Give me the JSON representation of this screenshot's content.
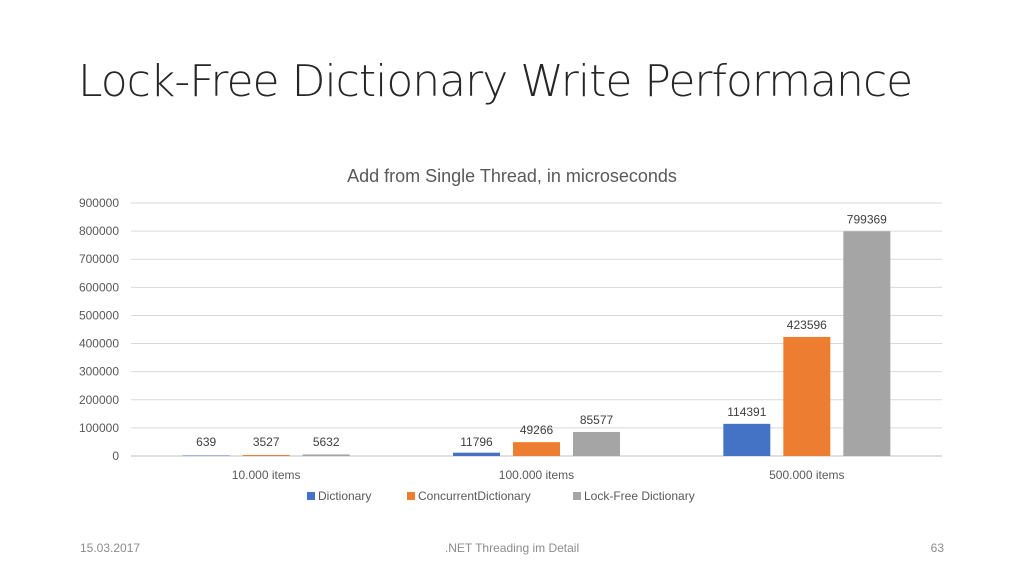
{
  "slide": {
    "title": "Lock-Free Dictionary Write Performance",
    "footer_date": "15.03.2017",
    "footer_center": ".NET Threading im Detail",
    "page_number": "63"
  },
  "chart_data": {
    "type": "bar",
    "title": "Add from Single Thread, in microseconds",
    "categories": [
      "10.000 items",
      "100.000 items",
      "500.000 items"
    ],
    "series": [
      {
        "name": "Dictionary",
        "color": "#4472c4",
        "values": [
          639,
          11796,
          114391
        ]
      },
      {
        "name": "ConcurrentDictionary",
        "color": "#ed7d31",
        "values": [
          3527,
          49266,
          423596
        ]
      },
      {
        "name": "Lock-Free Dictionary",
        "color": "#a5a5a5",
        "values": [
          5632,
          85577,
          799369
        ]
      }
    ],
    "ylim": [
      0,
      900000
    ],
    "yticks": [
      "0",
      "100000",
      "200000",
      "300000",
      "400000",
      "500000",
      "600000",
      "700000",
      "800000",
      "900000"
    ],
    "grid": true,
    "legend": "bottom"
  }
}
